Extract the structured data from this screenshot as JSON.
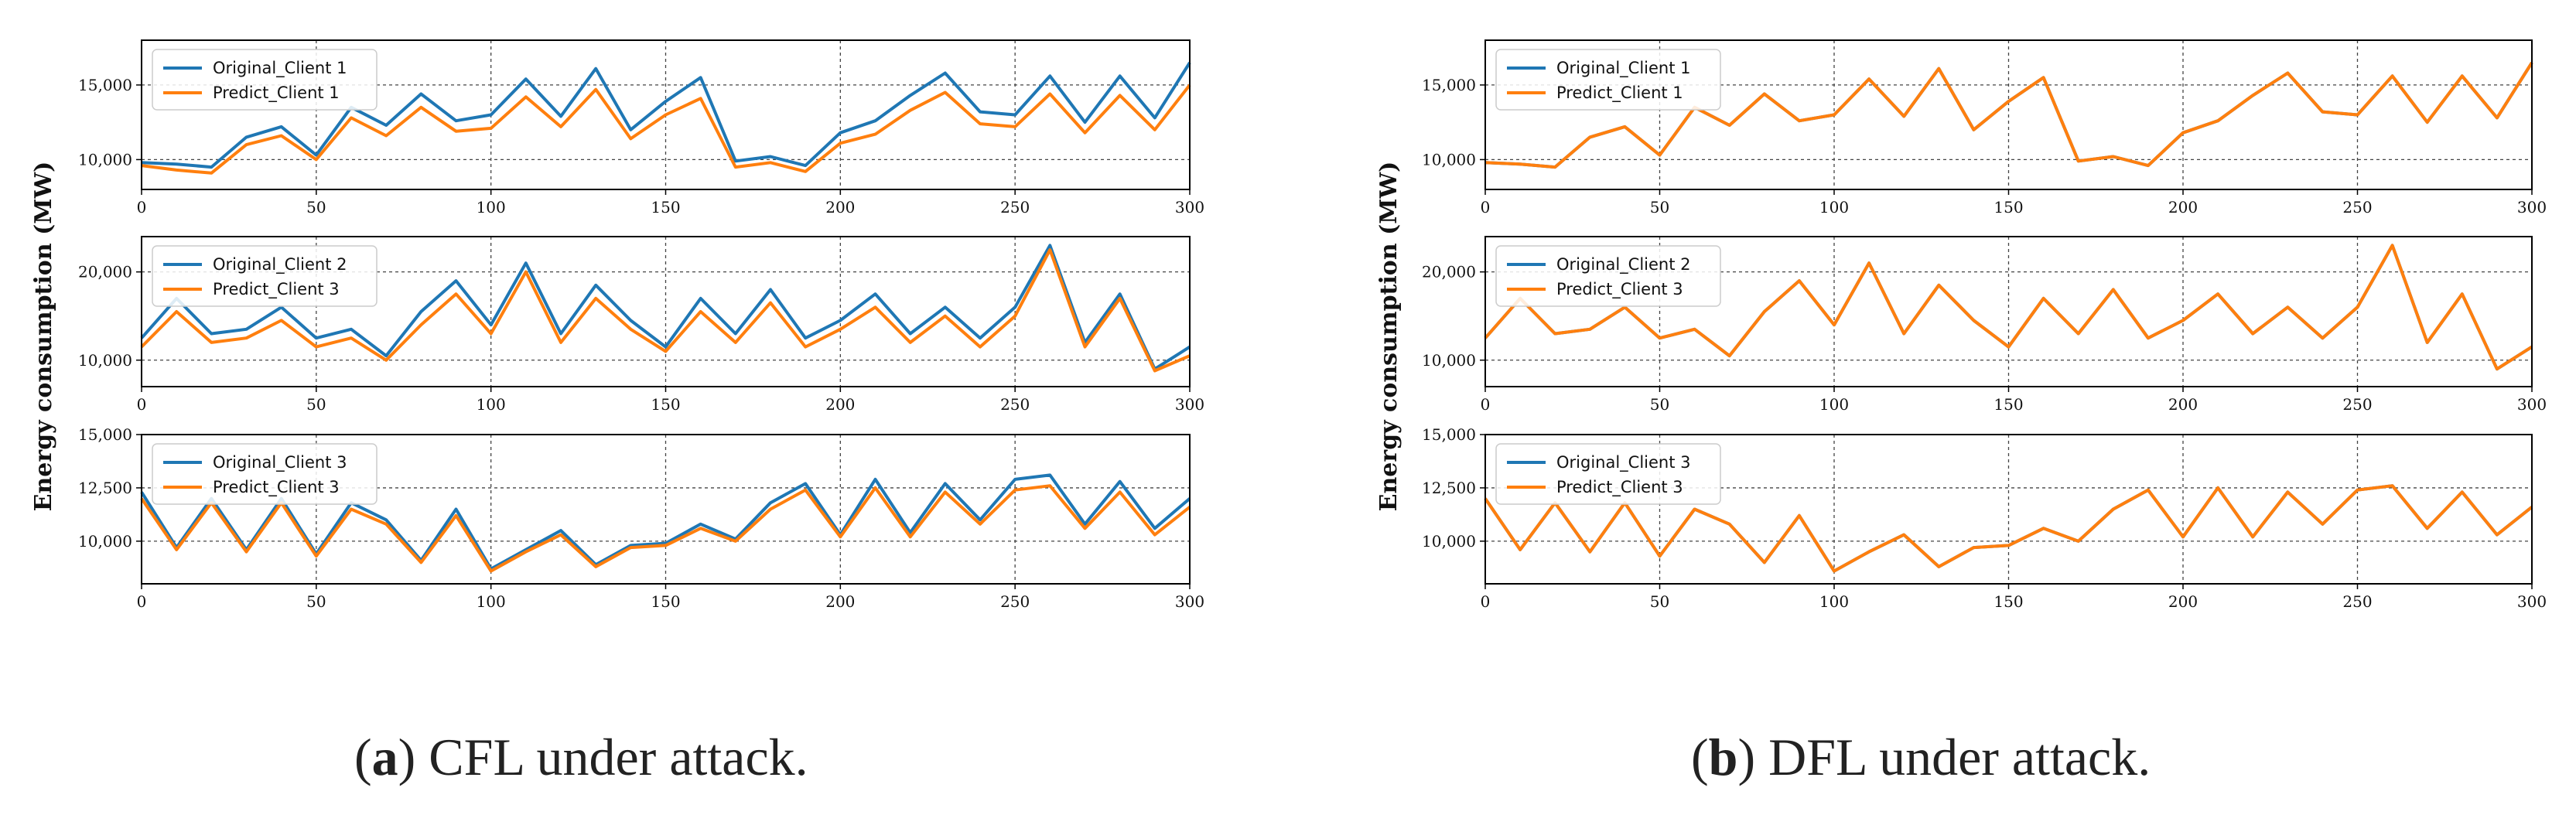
{
  "figure": {
    "ylabel": "Energy consumption (MW)",
    "panel_a": {
      "letter": "a",
      "caption": ") CFL under attack."
    },
    "panel_b": {
      "letter": "b",
      "caption": ") DFL under attack."
    }
  },
  "colors": {
    "original": "#1f77b4",
    "predict": "#ff7f0e"
  },
  "chart_data": [
    {
      "panel": "a",
      "row": 1,
      "type": "line",
      "xlim": [
        0,
        300
      ],
      "ylim": [
        8000,
        18000
      ],
      "xticks": [
        0,
        50,
        100,
        150,
        200,
        250,
        300
      ],
      "yticks": [
        10000,
        15000
      ],
      "ytick_labels": [
        "10,000",
        "15,000"
      ],
      "grid": true,
      "legend": [
        "Original_Client 1",
        "Predict_Client 1"
      ],
      "x": [
        0,
        10,
        20,
        30,
        40,
        50,
        60,
        70,
        80,
        90,
        100,
        110,
        120,
        130,
        140,
        150,
        160,
        170,
        180,
        190,
        200,
        210,
        220,
        230,
        240,
        250,
        260,
        270,
        280,
        290,
        300
      ],
      "series": [
        {
          "name": "Original_Client 1",
          "values": [
            9800,
            9700,
            9500,
            11500,
            12200,
            10300,
            13500,
            12300,
            14400,
            12600,
            13000,
            15400,
            12900,
            16100,
            12000,
            13900,
            15500,
            9900,
            10200,
            9600,
            11800,
            12600,
            14300,
            15800,
            13200,
            13000,
            15600,
            12500,
            15600,
            12800,
            16500
          ]
        },
        {
          "name": "Predict_Client 1",
          "values": [
            9600,
            9300,
            9100,
            11000,
            11600,
            10000,
            12800,
            11600,
            13500,
            11900,
            12100,
            14200,
            12200,
            14700,
            11400,
            13000,
            14100,
            9500,
            9800,
            9200,
            11100,
            11700,
            13300,
            14500,
            12400,
            12200,
            14400,
            11800,
            14300,
            12000,
            15000
          ]
        }
      ]
    },
    {
      "panel": "a",
      "row": 2,
      "type": "line",
      "xlim": [
        0,
        300
      ],
      "ylim": [
        7000,
        24000
      ],
      "xticks": [
        0,
        50,
        100,
        150,
        200,
        250,
        300
      ],
      "yticks": [
        10000,
        20000
      ],
      "ytick_labels": [
        "10,000",
        "20,000"
      ],
      "grid": true,
      "legend": [
        "Original_Client 2",
        "Predict_Client 3"
      ],
      "x": [
        0,
        10,
        20,
        30,
        40,
        50,
        60,
        70,
        80,
        90,
        100,
        110,
        120,
        130,
        140,
        150,
        160,
        170,
        180,
        190,
        200,
        210,
        220,
        230,
        240,
        250,
        260,
        270,
        280,
        290,
        300
      ],
      "series": [
        {
          "name": "Original_Client 2",
          "values": [
            12500,
            17000,
            13000,
            13500,
            16000,
            12500,
            13500,
            10500,
            15500,
            19000,
            14000,
            21000,
            13000,
            18500,
            14500,
            11500,
            17000,
            13000,
            18000,
            12500,
            14500,
            17500,
            13000,
            16000,
            12500,
            16000,
            23000,
            12000,
            17500,
            9000,
            11500
          ]
        },
        {
          "name": "Predict_Client 3",
          "values": [
            11500,
            15500,
            12000,
            12500,
            14500,
            11500,
            12500,
            10000,
            14000,
            17500,
            13000,
            20000,
            12000,
            17000,
            13500,
            11000,
            15500,
            12000,
            16500,
            11500,
            13500,
            16000,
            12000,
            15000,
            11500,
            15000,
            22500,
            11500,
            17000,
            8800,
            10500
          ]
        }
      ]
    },
    {
      "panel": "a",
      "row": 3,
      "type": "line",
      "xlim": [
        0,
        300
      ],
      "ylim": [
        8000,
        15000
      ],
      "xticks": [
        0,
        50,
        100,
        150,
        200,
        250,
        300
      ],
      "yticks": [
        10000,
        12500,
        15000
      ],
      "ytick_labels": [
        "10,000",
        "12,500",
        "15,000"
      ],
      "grid": true,
      "legend": [
        "Original_Client 3",
        "Predict_Client 3"
      ],
      "x": [
        0,
        10,
        20,
        30,
        40,
        50,
        60,
        70,
        80,
        90,
        100,
        110,
        120,
        130,
        140,
        150,
        160,
        170,
        180,
        190,
        200,
        210,
        220,
        230,
        240,
        250,
        260,
        270,
        280,
        290,
        300
      ],
      "series": [
        {
          "name": "Original_Client 3",
          "values": [
            12300,
            9700,
            12000,
            9600,
            12000,
            9400,
            11800,
            11000,
            9100,
            11500,
            8700,
            9600,
            10500,
            8900,
            9800,
            9900,
            10800,
            10100,
            11800,
            12700,
            10300,
            12900,
            10400,
            12700,
            11000,
            12900,
            13100,
            10800,
            12800,
            10600,
            12000
          ]
        },
        {
          "name": "Predict_Client 3",
          "values": [
            12000,
            9600,
            11800,
            9500,
            11800,
            9300,
            11500,
            10800,
            9000,
            11200,
            8600,
            9500,
            10300,
            8800,
            9700,
            9800,
            10600,
            10000,
            11500,
            12400,
            10200,
            12500,
            10200,
            12300,
            10800,
            12400,
            12600,
            10600,
            12300,
            10300,
            11600
          ]
        }
      ]
    },
    {
      "panel": "b",
      "row": 1,
      "type": "line",
      "xlim": [
        0,
        300
      ],
      "ylim": [
        8000,
        18000
      ],
      "xticks": [
        0,
        50,
        100,
        150,
        200,
        250,
        300
      ],
      "yticks": [
        10000,
        15000
      ],
      "ytick_labels": [
        "10,000",
        "15,000"
      ],
      "grid": true,
      "legend": [
        "Original_Client 1",
        "Predict_Client 1"
      ],
      "x": [
        0,
        10,
        20,
        30,
        40,
        50,
        60,
        70,
        80,
        90,
        100,
        110,
        120,
        130,
        140,
        150,
        160,
        170,
        180,
        190,
        200,
        210,
        220,
        230,
        240,
        250,
        260,
        270,
        280,
        290,
        300
      ],
      "series": [
        {
          "name": "Original_Client 1",
          "values": [
            9800,
            9700,
            9500,
            11500,
            12200,
            10300,
            13500,
            12300,
            14400,
            12600,
            13000,
            15400,
            12900,
            16100,
            12000,
            13900,
            15500,
            9900,
            10200,
            9600,
            11800,
            12600,
            14300,
            15800,
            13200,
            13000,
            15600,
            12500,
            15600,
            12800,
            16500
          ]
        },
        {
          "name": "Predict_Client 1",
          "values": [
            9800,
            9700,
            9500,
            11500,
            12200,
            10300,
            13500,
            12300,
            14400,
            12600,
            13000,
            15400,
            12900,
            16100,
            12000,
            13900,
            15500,
            9900,
            10200,
            9600,
            11800,
            12600,
            14300,
            15800,
            13200,
            13000,
            15600,
            12500,
            15600,
            12800,
            16500
          ]
        }
      ]
    },
    {
      "panel": "b",
      "row": 2,
      "type": "line",
      "xlim": [
        0,
        300
      ],
      "ylim": [
        7000,
        24000
      ],
      "xticks": [
        0,
        50,
        100,
        150,
        200,
        250,
        300
      ],
      "yticks": [
        10000,
        20000
      ],
      "ytick_labels": [
        "10,000",
        "20,000"
      ],
      "grid": true,
      "legend": [
        "Original_Client 2",
        "Predict_Client 3"
      ],
      "x": [
        0,
        10,
        20,
        30,
        40,
        50,
        60,
        70,
        80,
        90,
        100,
        110,
        120,
        130,
        140,
        150,
        160,
        170,
        180,
        190,
        200,
        210,
        220,
        230,
        240,
        250,
        260,
        270,
        280,
        290,
        300
      ],
      "series": [
        {
          "name": "Original_Client 2",
          "values": [
            12500,
            17000,
            13000,
            13500,
            16000,
            12500,
            13500,
            10500,
            15500,
            19000,
            14000,
            21000,
            13000,
            18500,
            14500,
            11500,
            17000,
            13000,
            18000,
            12500,
            14500,
            17500,
            13000,
            16000,
            12500,
            16000,
            23000,
            12000,
            17500,
            9000,
            11500
          ]
        },
        {
          "name": "Predict_Client 3",
          "values": [
            12500,
            17000,
            13000,
            13500,
            16000,
            12500,
            13500,
            10500,
            15500,
            19000,
            14000,
            21000,
            13000,
            18500,
            14500,
            11500,
            17000,
            13000,
            18000,
            12500,
            14500,
            17500,
            13000,
            16000,
            12500,
            16000,
            23000,
            12000,
            17500,
            9000,
            11500
          ]
        }
      ]
    },
    {
      "panel": "b",
      "row": 3,
      "type": "line",
      "xlim": [
        0,
        300
      ],
      "ylim": [
        8000,
        15000
      ],
      "xticks": [
        0,
        50,
        100,
        150,
        200,
        250,
        300
      ],
      "yticks": [
        10000,
        12500,
        15000
      ],
      "ytick_labels": [
        "10,000",
        "12,500",
        "15,000"
      ],
      "grid": true,
      "legend": [
        "Original_Client 3",
        "Predict_Client 3"
      ],
      "x": [
        0,
        10,
        20,
        30,
        40,
        50,
        60,
        70,
        80,
        90,
        100,
        110,
        120,
        130,
        140,
        150,
        160,
        170,
        180,
        190,
        200,
        210,
        220,
        230,
        240,
        250,
        260,
        270,
        280,
        290,
        300
      ],
      "series": [
        {
          "name": "Original_Client 3",
          "values": [
            12000,
            9600,
            11800,
            9500,
            11800,
            9300,
            11500,
            10800,
            9000,
            11200,
            8600,
            9500,
            10300,
            8800,
            9700,
            9800,
            10600,
            10000,
            11500,
            12400,
            10200,
            12500,
            10200,
            12300,
            10800,
            12400,
            12600,
            10600,
            12300,
            10300,
            11600
          ]
        },
        {
          "name": "Predict_Client 3",
          "values": [
            12000,
            9600,
            11800,
            9500,
            11800,
            9300,
            11500,
            10800,
            9000,
            11200,
            8600,
            9500,
            10300,
            8800,
            9700,
            9800,
            10600,
            10000,
            11500,
            12400,
            10200,
            12500,
            10200,
            12300,
            10800,
            12400,
            12600,
            10600,
            12300,
            10300,
            11600
          ]
        }
      ]
    }
  ]
}
